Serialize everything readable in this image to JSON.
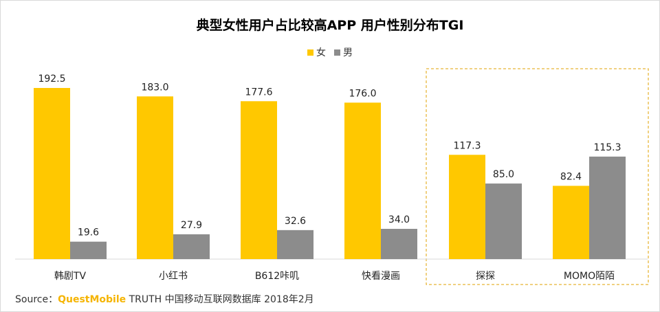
{
  "chart_data": {
    "type": "bar",
    "title": "典型女性用户占比较高APP 用户性别分布TGI",
    "categories": [
      "韩剧TV",
      "小红书",
      "B612咔叽",
      "快看漫画",
      "探探",
      "MOMO陌陌"
    ],
    "series": [
      {
        "name": "女",
        "color": "#ffc800",
        "values": [
          192.5,
          183.0,
          177.6,
          176.0,
          117.3,
          82.4
        ]
      },
      {
        "name": "男",
        "color": "#8c8c8c",
        "values": [
          19.6,
          27.9,
          32.6,
          34.0,
          85.0,
          115.3
        ]
      }
    ],
    "ylim": [
      0,
      200
    ],
    "grid": false,
    "legend_position": "top-center",
    "highlight_group": [
      "探探",
      "MOMO陌陌"
    ],
    "highlight_color": "#e0a000"
  },
  "source": {
    "prefix": "Source：",
    "brand": "QuestMobile",
    "suffix": " TRUTH 中国移动互联网数据库 2018年2月"
  }
}
